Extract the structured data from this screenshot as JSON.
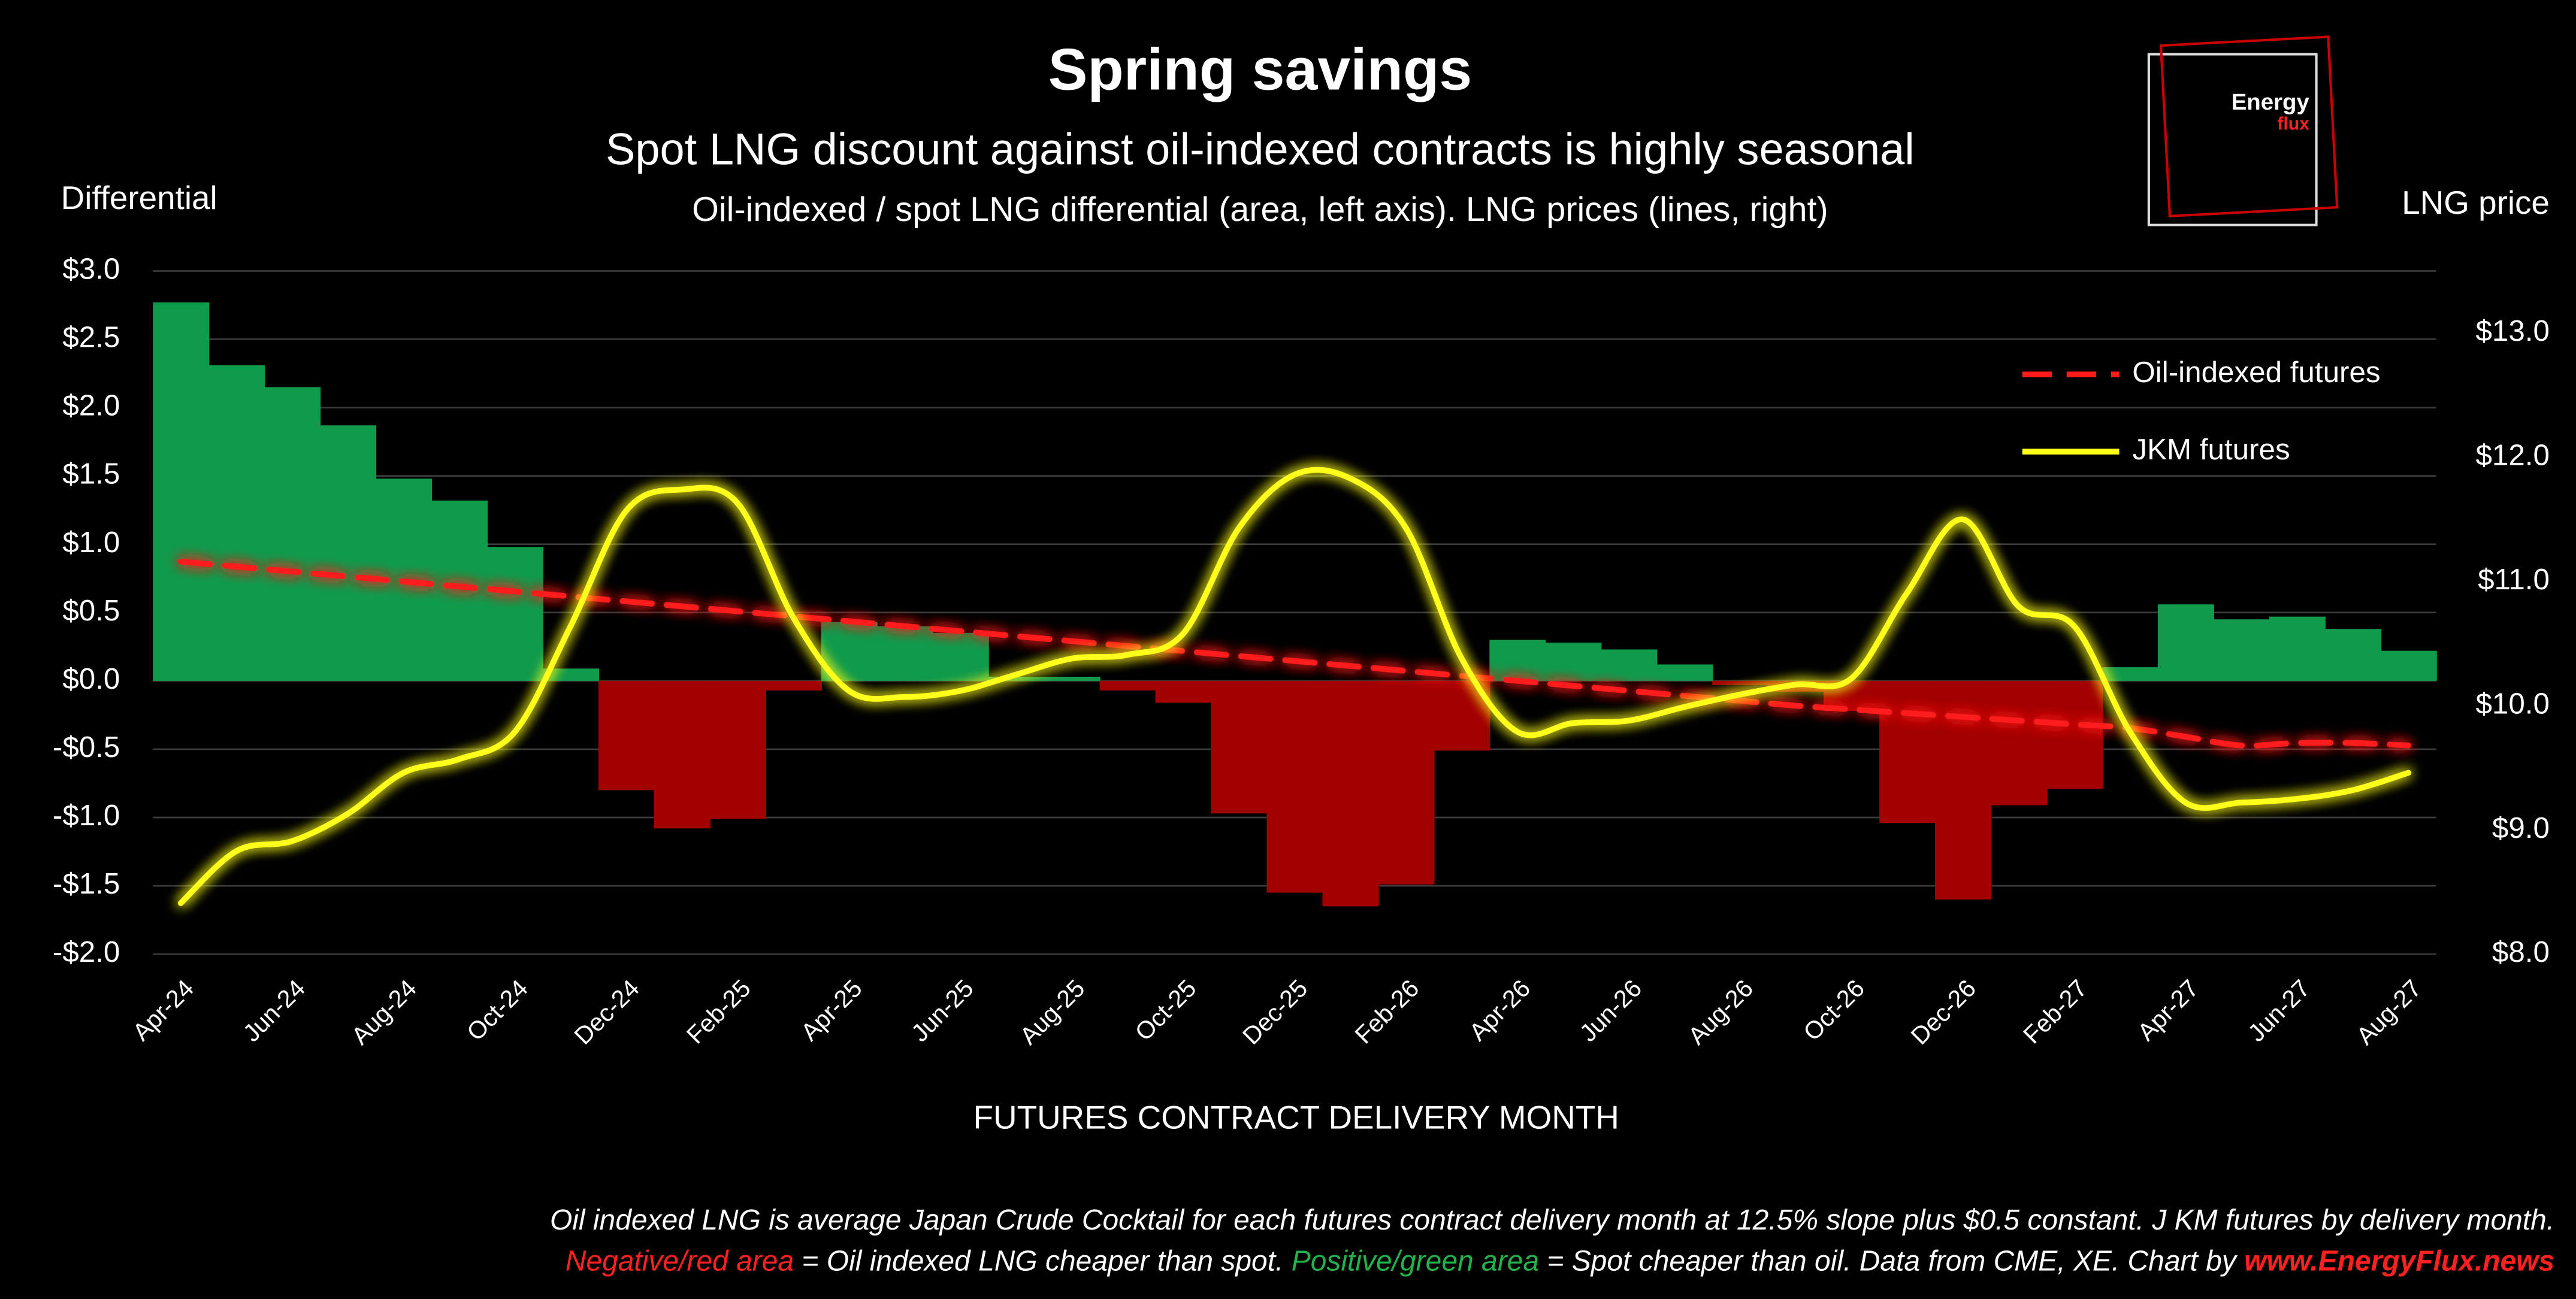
{
  "chart_data": {
    "type": "bar",
    "title": "Spring savings",
    "subtitle": "Spot LNG discount against oil-indexed contracts is highly seasonal",
    "description": "Oil-indexed / spot LNG differential (area, left axis). LNG prices (lines, right)",
    "y_axis_label": "Differential",
    "y2_axis_label": "LNG price",
    "x_axis_label": "FUTURES CONTRACT DELIVERY MONTH",
    "logo": [
      "Energy",
      "flux"
    ],
    "categories": [
      "Apr-24",
      null,
      "Jun-24",
      null,
      "Aug-24",
      null,
      "Oct-24",
      null,
      "Dec-24",
      null,
      "Feb-25",
      null,
      "Apr-25",
      null,
      "Jun-25",
      null,
      "Aug-25",
      null,
      "Oct-25",
      null,
      "Dec-25",
      null,
      "Feb-26",
      null,
      "Apr-26",
      null,
      "Jun-26",
      null,
      "Aug-26",
      null,
      "Oct-26",
      null,
      "Dec-26",
      null,
      "Feb-27",
      null,
      "Apr-27",
      null,
      "Jun-27",
      null,
      "Aug-27"
    ],
    "values": [
      2.77,
      2.31,
      2.15,
      1.87,
      1.48,
      1.32,
      0.98,
      0.09,
      -0.8,
      -1.08,
      -1.01,
      -0.07,
      0.43,
      0.4,
      0.35,
      0.03,
      0.03,
      -0.07,
      -0.16,
      -0.97,
      -1.55,
      -1.65,
      -1.49,
      -0.51,
      0.3,
      0.28,
      0.23,
      0.12,
      -0.03,
      -0.08,
      -0.22,
      -1.04,
      -1.6,
      -0.91,
      -0.79,
      0.1,
      0.56,
      0.45,
      0.47,
      0.38,
      0.22
    ],
    "positive_color": "#109a4c",
    "negative_color": "#a30000",
    "series": [
      {
        "name": "Oil-indexed futures",
        "color": "#ff1a1a",
        "dashed": true,
        "axis": "y2",
        "values": [
          11.16,
          11.12,
          11.08,
          11.04,
          11.0,
          10.96,
          10.92,
          10.88,
          10.84,
          10.8,
          10.76,
          10.72,
          10.68,
          10.64,
          10.6,
          10.56,
          10.52,
          10.48,
          10.44,
          10.4,
          10.36,
          10.32,
          10.28,
          10.24,
          10.2,
          10.16,
          10.12,
          10.08,
          10.04,
          10.0,
          9.97,
          9.94,
          9.91,
          9.88,
          9.85,
          9.82,
          9.75,
          9.68,
          9.7,
          9.7,
          9.68
        ]
      },
      {
        "name": "JKM futures",
        "color": "#ffff1a",
        "dashed": false,
        "axis": "y2",
        "values": [
          8.41,
          8.83,
          8.91,
          9.13,
          9.46,
          9.57,
          9.79,
          10.64,
          11.57,
          11.74,
          11.63,
          10.71,
          10.12,
          10.07,
          10.12,
          10.25,
          10.38,
          10.41,
          10.58,
          11.43,
          11.86,
          11.83,
          11.43,
          10.38,
          9.79,
          9.86,
          9.88,
          9.99,
          10.09,
          10.17,
          10.22,
          10.91,
          11.5,
          10.8,
          10.64,
          9.79,
          9.22,
          9.22,
          9.25,
          9.32,
          9.46
        ]
      }
    ],
    "ylim": [
      -2,
      3
    ],
    "yticks": [
      {
        "value": -2,
        "label": "-$2.0"
      },
      {
        "value": -1.5,
        "label": "-$1.5"
      },
      {
        "value": -1,
        "label": "-$1.0"
      },
      {
        "value": -0.5,
        "label": "-$0.5"
      },
      {
        "value": 0,
        "label": "$0.0"
      },
      {
        "value": 0.5,
        "label": "$0.5"
      },
      {
        "value": 1,
        "label": "$1.0"
      },
      {
        "value": 1.5,
        "label": "$1.5"
      },
      {
        "value": 2,
        "label": "$2.0"
      },
      {
        "value": 2.5,
        "label": "$2.5"
      },
      {
        "value": 3,
        "label": "$3.0"
      }
    ],
    "y2lim": [
      8,
      13.5
    ],
    "y2ticks": [
      {
        "value": 8,
        "label": "$8.0"
      },
      {
        "value": 9,
        "label": "$9.0"
      },
      {
        "value": 10,
        "label": "$10.0"
      },
      {
        "value": 11,
        "label": "$11.0"
      },
      {
        "value": 12,
        "label": "$12.0"
      },
      {
        "value": 13,
        "label": "$13.0"
      }
    ],
    "grid": true,
    "legend": "upper right",
    "footnote": [
      [
        {
          "text": "Oil indexed LNG is average Japan Crude Cocktail for each futures contract delivery month at 12.5% slope plus $0.5 constant. J KM futures by delivery month.",
          "color": "#ffffff"
        }
      ],
      [
        {
          "text": "Negative/red area",
          "color": "#ff2020"
        },
        {
          "text": " = Oil indexed LNG cheaper than spot. ",
          "color": "#ffffff"
        },
        {
          "text": "Positive/green area",
          "color": "#22b24c"
        },
        {
          "text": " = Spot cheaper than oil. Data from CME, XE. Chart by ",
          "color": "#ffffff"
        },
        {
          "text": "www.EnergyFlux.news",
          "color": "#ff2020",
          "bold": true
        }
      ]
    ]
  }
}
